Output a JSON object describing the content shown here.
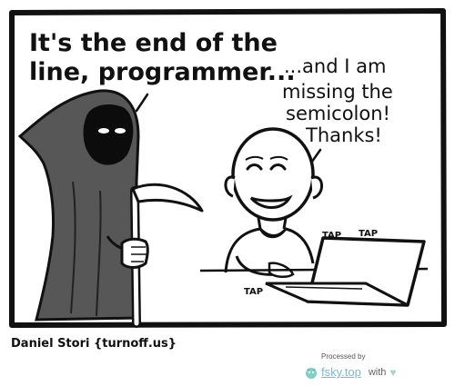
{
  "comic": {
    "reaper_line_1": "It's the end of the",
    "reaper_line_2": "line, programmer...",
    "dev_line_1": "...and I am",
    "dev_line_2": "missing the",
    "dev_line_3": "semicolon!",
    "dev_line_4": "Thanks!",
    "sfx_1": "TAP",
    "sfx_2": "TAP",
    "sfx_3": "TAP",
    "credit": "Daniel Stori {turnoff.us}"
  },
  "footer": {
    "processed_label": "Processed by",
    "brand_link": "fsky.top",
    "with_label": "with",
    "heart_icon": "♥",
    "accent_color": "#7fb6d8",
    "heart_color": "#a8d5c6"
  }
}
